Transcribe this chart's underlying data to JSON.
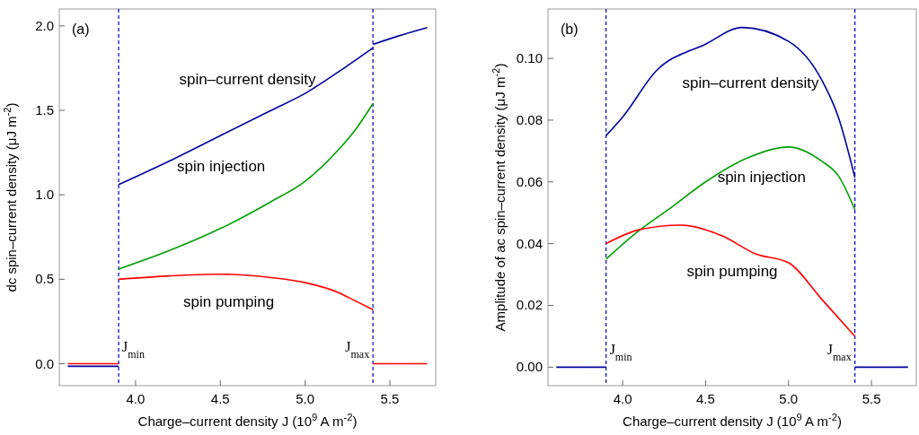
{
  "chart_data": [
    {
      "type": "line",
      "title": "(a)",
      "xlabel": "Charge–current density J (10$^{9}$ A m$^{-2}$)",
      "ylabel": "dc spin–current density (μJ m$^{-2}$)",
      "xlim": [
        3.55,
        5.77
      ],
      "ylim": [
        -0.13,
        2.1
      ],
      "xticks": [
        {
          "value": 4,
          "label": "4.0"
        },
        {
          "value": 4.5,
          "label": "4.5"
        },
        {
          "value": 5,
          "label": "5.0"
        },
        {
          "value": 5.5,
          "label": "5.5"
        }
      ],
      "yticks": [
        {
          "value": 0,
          "label": "0.0"
        },
        {
          "value": 0.5,
          "label": "0.5"
        },
        {
          "value": 1,
          "label": "1.0"
        },
        {
          "value": 1.5,
          "label": "1.5"
        },
        {
          "value": 2,
          "label": "2.0"
        }
      ],
      "grid": false,
      "line_style": "solid",
      "marker": "none",
      "series": [
        {
          "color": "#0000a0",
          "x": [
            3.6,
            3.9
          ],
          "values": [
            -0.015,
            -0.015
          ]
        },
        {
          "color": "#0000a0",
          "x": [
            3.9,
            4.2,
            4.5,
            4.8,
            5.0,
            5.2,
            5.4
          ],
          "values": [
            1.06,
            1.2,
            1.35,
            1.5,
            1.6,
            1.73,
            1.87
          ]
        },
        {
          "color": "#0000a0",
          "x": [
            5.4,
            5.55,
            5.72
          ],
          "values": [
            1.89,
            1.94,
            1.99
          ]
        },
        {
          "color": "#00a000",
          "x": [
            3.9,
            4.2,
            4.5,
            4.8,
            5.0,
            5.2,
            5.3,
            5.4
          ],
          "values": [
            0.56,
            0.67,
            0.8,
            0.96,
            1.08,
            1.27,
            1.39,
            1.54
          ]
        },
        {
          "color": "#ff0000",
          "x": [
            3.6,
            3.9
          ],
          "values": [
            0,
            0
          ]
        },
        {
          "color": "#ff0000",
          "x": [
            3.9,
            4.2,
            4.5,
            4.8,
            5.0,
            5.2,
            5.3,
            5.4
          ],
          "values": [
            0.5,
            0.52,
            0.53,
            0.51,
            0.48,
            0.42,
            0.37,
            0.32
          ]
        },
        {
          "color": "#ff0000",
          "x": [
            5.4,
            5.72
          ],
          "values": [
            0,
            0
          ]
        }
      ],
      "ref_lines": [
        {
          "axis": "x",
          "value": 3.9,
          "label": "J$_{min}$",
          "color": "#0000c0",
          "line_style": "dashed"
        },
        {
          "axis": "x",
          "value": 5.4,
          "label": "J$_{max}$",
          "color": "#0000c0",
          "line_style": "dashed"
        }
      ],
      "annotations": [
        "spin–current density",
        "spin injection",
        "spin pumping"
      ]
    },
    {
      "type": "line",
      "title": "(b)",
      "xlabel": "Charge–current density J (10$^{9}$ A m$^{-2}$)",
      "ylabel": "Amplitude of ac spin–current density (μJ m$^{-2}$)",
      "xlim": [
        3.55,
        5.77
      ],
      "ylim": [
        -0.006,
        0.116
      ],
      "xticks": [
        {
          "value": 4,
          "label": "4.0"
        },
        {
          "value": 4.5,
          "label": "4.5"
        },
        {
          "value": 5,
          "label": "5.0"
        },
        {
          "value": 5.5,
          "label": "5.5"
        }
      ],
      "yticks": [
        {
          "value": 0,
          "label": "0.00"
        },
        {
          "value": 0.02,
          "label": "0.02"
        },
        {
          "value": 0.04,
          "label": "0.04"
        },
        {
          "value": 0.06,
          "label": "0.06"
        },
        {
          "value": 0.08,
          "label": "0.08"
        },
        {
          "value": 0.1,
          "label": "0.10"
        }
      ],
      "grid": false,
      "line_style": "solid",
      "marker": "none",
      "series": [
        {
          "color": "#0000a0",
          "x": [
            3.6,
            3.9
          ],
          "values": [
            0,
            0
          ]
        },
        {
          "color": "#0000a0",
          "x": [
            3.9,
            4.0,
            4.2,
            4.5,
            4.72,
            5.0,
            5.2,
            5.3,
            5.4
          ],
          "values": [
            0.075,
            0.081,
            0.0958,
            0.1046,
            0.11,
            0.1055,
            0.093,
            0.081,
            0.0614
          ]
        },
        {
          "color": "#0000a0",
          "x": [
            5.4,
            5.72
          ],
          "values": [
            0,
            0
          ]
        },
        {
          "color": "#00a000",
          "x": [
            3.9,
            4.07,
            4.3,
            4.5,
            4.75,
            5.0,
            5.2,
            5.3,
            5.4
          ],
          "values": [
            0.035,
            0.043,
            0.052,
            0.06,
            0.0677,
            0.0713,
            0.0667,
            0.062,
            0.051
          ]
        },
        {
          "color": "#ff0000",
          "x": [
            3.9,
            4.1,
            4.35,
            4.6,
            4.8,
            5.0,
            5.2,
            5.4
          ],
          "values": [
            0.04,
            0.0445,
            0.046,
            0.0425,
            0.0367,
            0.0338,
            0.022,
            0.01
          ]
        }
      ],
      "ref_lines": [
        {
          "axis": "x",
          "value": 3.9,
          "label": "J$_{min}$",
          "color": "#0000c0",
          "line_style": "dashed"
        },
        {
          "axis": "x",
          "value": 5.4,
          "label": "J$_{max}$",
          "color": "#0000c0",
          "line_style": "dashed"
        }
      ],
      "annotations": [
        "spin–current density",
        "spin injection",
        "spin pumping"
      ]
    }
  ]
}
